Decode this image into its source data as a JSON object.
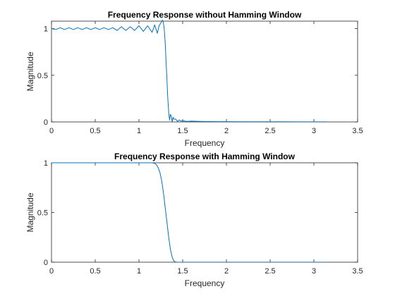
{
  "chart_data": [
    {
      "type": "line",
      "title": "Frequency Response without Hamming Window",
      "xlabel": "Frequency",
      "ylabel": "Magnitude",
      "xlim": [
        0,
        3.5
      ],
      "ylim": [
        0,
        1.08
      ],
      "xticks": [
        "0",
        "0.5",
        "1",
        "1.5",
        "2",
        "2.5",
        "3",
        "3.5"
      ],
      "xtick_values": [
        0,
        0.5,
        1,
        1.5,
        2,
        2.5,
        3,
        3.5
      ],
      "yticks": [
        "0",
        "0.5",
        "1"
      ],
      "ytick_values": [
        0,
        0.5,
        1
      ],
      "grid": false,
      "series": [
        {
          "color": "#0072BD",
          "x": [
            0,
            0.05,
            0.1,
            0.15,
            0.2,
            0.25,
            0.3,
            0.35,
            0.4,
            0.45,
            0.5,
            0.55,
            0.6,
            0.65,
            0.7,
            0.75,
            0.8,
            0.85,
            0.9,
            0.95,
            1.0,
            1.05,
            1.1,
            1.15,
            1.18,
            1.21,
            1.23,
            1.25,
            1.27,
            1.28,
            1.29,
            1.3,
            1.31,
            1.32,
            1.33,
            1.34,
            1.35,
            1.36,
            1.37,
            1.38,
            1.39,
            1.4,
            1.42,
            1.44,
            1.46,
            1.48,
            1.5,
            1.55,
            1.6,
            1.7,
            1.8,
            1.9,
            2.0,
            2.2,
            2.4,
            2.6,
            2.8,
            3.0,
            3.14
          ],
          "y": [
            1.0,
            0.99,
            1.01,
            0.99,
            1.01,
            0.99,
            1.01,
            0.99,
            1.01,
            0.99,
            1.01,
            0.99,
            1.01,
            0.99,
            1.01,
            0.98,
            1.02,
            0.98,
            1.02,
            0.98,
            1.03,
            0.97,
            1.03,
            0.96,
            1.04,
            0.95,
            1.03,
            1.06,
            1.09,
            1.06,
            0.98,
            0.85,
            0.65,
            0.45,
            0.25,
            0.1,
            0.02,
            0.08,
            0.06,
            0.0,
            0.05,
            0.03,
            0.03,
            0.005,
            0.02,
            0.01,
            0.012,
            0.005,
            0.008,
            0.005,
            0.004,
            0.003,
            0.003,
            0.002,
            0.002,
            0.002,
            0.001,
            0.001,
            0.001
          ]
        }
      ]
    },
    {
      "type": "line",
      "title": "Frequency Response with Hamming Window",
      "xlabel": "Frequency",
      "ylabel": "Magnitude",
      "xlim": [
        0,
        3.5
      ],
      "ylim": [
        0,
        1
      ],
      "xticks": [
        "0",
        "0.5",
        "1",
        "1.5",
        "2",
        "2.5",
        "3",
        "3.5"
      ],
      "xtick_values": [
        0,
        0.5,
        1,
        1.5,
        2,
        2.5,
        3,
        3.5
      ],
      "yticks": [
        "0",
        "0.5",
        "1"
      ],
      "ytick_values": [
        0,
        0.5,
        1
      ],
      "grid": false,
      "series": [
        {
          "color": "#0072BD",
          "x": [
            0,
            0.5,
            1.0,
            1.1,
            1.15,
            1.18,
            1.2,
            1.22,
            1.24,
            1.26,
            1.28,
            1.3,
            1.32,
            1.34,
            1.36,
            1.38,
            1.4,
            1.42,
            1.44,
            1.5,
            2.0,
            2.5,
            3.0,
            3.14
          ],
          "y": [
            1.0,
            1.0,
            1.0,
            1.0,
            1.0,
            0.995,
            0.98,
            0.95,
            0.9,
            0.82,
            0.7,
            0.55,
            0.4,
            0.25,
            0.13,
            0.05,
            0.01,
            0.002,
            0.0,
            0.0,
            0.0,
            0.0,
            0.0,
            0.0
          ]
        }
      ]
    }
  ]
}
